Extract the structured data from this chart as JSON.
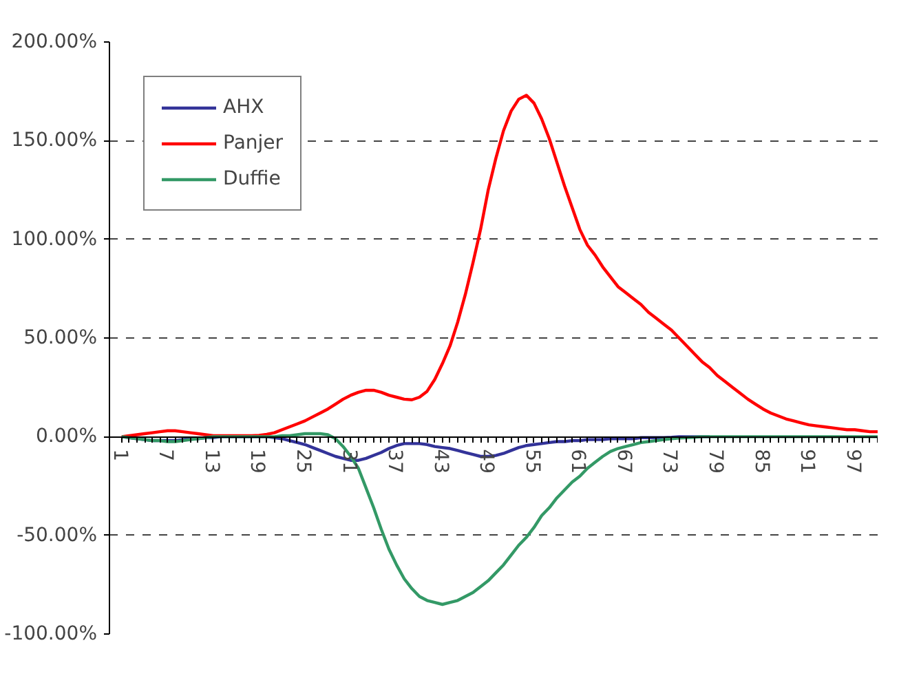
{
  "chart_data": {
    "type": "line",
    "categories": [
      "1",
      null,
      null,
      null,
      null,
      null,
      "7",
      null,
      null,
      null,
      null,
      null,
      "13",
      null,
      null,
      null,
      null,
      null,
      "19",
      null,
      null,
      null,
      null,
      null,
      "25",
      null,
      null,
      null,
      null,
      null,
      "31",
      null,
      null,
      null,
      null,
      null,
      "37",
      null,
      null,
      null,
      null,
      null,
      "43",
      null,
      null,
      null,
      null,
      null,
      "49",
      null,
      null,
      null,
      null,
      null,
      "55",
      null,
      null,
      null,
      null,
      null,
      "61",
      null,
      null,
      null,
      null,
      null,
      "67",
      null,
      null,
      null,
      null,
      null,
      "73",
      null,
      null,
      null,
      null,
      null,
      "79",
      null,
      null,
      null,
      null,
      null,
      "85",
      null,
      null,
      null,
      null,
      null,
      "91",
      null,
      null,
      null,
      null,
      null,
      "97",
      null,
      null,
      null
    ],
    "series": [
      {
        "name": "AHX",
        "color": "#333399",
        "values": [
          0,
          -0.5,
          -1,
          -1.5,
          -2,
          -2,
          -2,
          -2,
          -1.5,
          -1,
          -1,
          -0.5,
          -0.5,
          0,
          0,
          0,
          0,
          0,
          0,
          0,
          -0.5,
          -1,
          -2,
          -3,
          -4,
          -5.5,
          -7,
          -8.5,
          -10,
          -11,
          -12,
          -12,
          -11,
          -9.5,
          -8,
          -6,
          -4.5,
          -3.5,
          -3.5,
          -3.5,
          -4,
          -5,
          -5.5,
          -6,
          -7,
          -8,
          -9,
          -10,
          -10,
          -9.5,
          -8.5,
          -7,
          -5.5,
          -4.5,
          -4,
          -3.5,
          -3,
          -2.5,
          -2.5,
          -2,
          -2,
          -1.5,
          -1.5,
          -1.5,
          -1,
          -1,
          -1,
          -1,
          -0.5,
          -0.5,
          -0.5,
          -0.5,
          -0.3,
          0,
          0,
          0,
          0,
          0,
          null,
          null,
          null,
          null,
          null,
          null,
          null,
          null,
          null,
          null,
          null,
          null,
          null,
          null,
          null,
          null,
          null,
          null,
          null,
          null,
          null,
          null
        ]
      },
      {
        "name": "Panjer",
        "color": "#ff0000",
        "values": [
          0,
          0.5,
          1,
          1.5,
          2,
          2.5,
          3,
          3,
          2.5,
          2,
          1.5,
          1,
          0.5,
          0.5,
          0.5,
          0.5,
          0.5,
          0.5,
          0.7,
          1.2,
          2,
          3.5,
          5,
          6.5,
          8,
          10,
          12,
          14,
          16.5,
          19,
          21,
          22.5,
          23.5,
          23.5,
          22.5,
          21,
          20,
          19,
          18.7,
          20,
          23,
          29,
          37,
          46,
          58,
          72,
          88,
          105,
          125,
          141,
          155,
          165,
          171,
          173,
          169,
          161,
          151,
          139,
          127,
          116,
          105,
          97,
          92,
          86,
          81,
          76,
          73,
          70,
          67,
          63,
          60,
          57,
          54,
          50,
          46,
          42,
          38,
          35,
          31,
          28,
          25,
          22,
          19,
          16.5,
          14,
          12,
          10.5,
          9,
          8,
          7,
          6,
          5.5,
          5,
          4.5,
          4,
          3.5,
          3.5,
          3,
          2.5,
          2.5
        ]
      },
      {
        "name": "Duffie",
        "color": "#339966",
        "values": [
          0,
          -0.5,
          -1,
          -1.5,
          -2,
          -2,
          -2.5,
          -2.5,
          -2,
          -1.5,
          -1,
          -0.5,
          0,
          0,
          0,
          0,
          0,
          0,
          0,
          0,
          0,
          0.5,
          0.5,
          1,
          1.5,
          1.5,
          1.5,
          1,
          -1,
          -5,
          -10,
          -16,
          -26,
          -36,
          -47,
          -57,
          -65,
          -72,
          -77,
          -81,
          -83,
          -84,
          -85,
          -84,
          -83,
          -81,
          -79,
          -76,
          -73,
          -69,
          -65,
          -60,
          -55,
          -51,
          -46,
          -40,
          -36,
          -31,
          -27,
          -23,
          -20,
          -16,
          -13,
          -10,
          -7.5,
          -6,
          -5,
          -4,
          -3,
          -2.5,
          -2,
          -1.5,
          -1,
          -0.7,
          -0.5,
          -0.3,
          0,
          0,
          0,
          0,
          0,
          0,
          0,
          0,
          0,
          0,
          0,
          0,
          0,
          0,
          0,
          0,
          0,
          0,
          0,
          0,
          0,
          0,
          0,
          0
        ]
      }
    ],
    "ylim": [
      -100,
      200
    ],
    "yticks": [
      {
        "value": -100,
        "label": "-100.00%"
      },
      {
        "value": -50,
        "label": "-50.00%"
      },
      {
        "value": 0,
        "label": "0.00%"
      },
      {
        "value": 50,
        "label": "50.00%"
      },
      {
        "value": 100,
        "label": "100.00%"
      },
      {
        "value": 150,
        "label": "150.00%"
      },
      {
        "value": 200,
        "label": "200.00%"
      }
    ],
    "grid": "y",
    "legend": "top left",
    "marker": "none",
    "line_style": "solid"
  }
}
